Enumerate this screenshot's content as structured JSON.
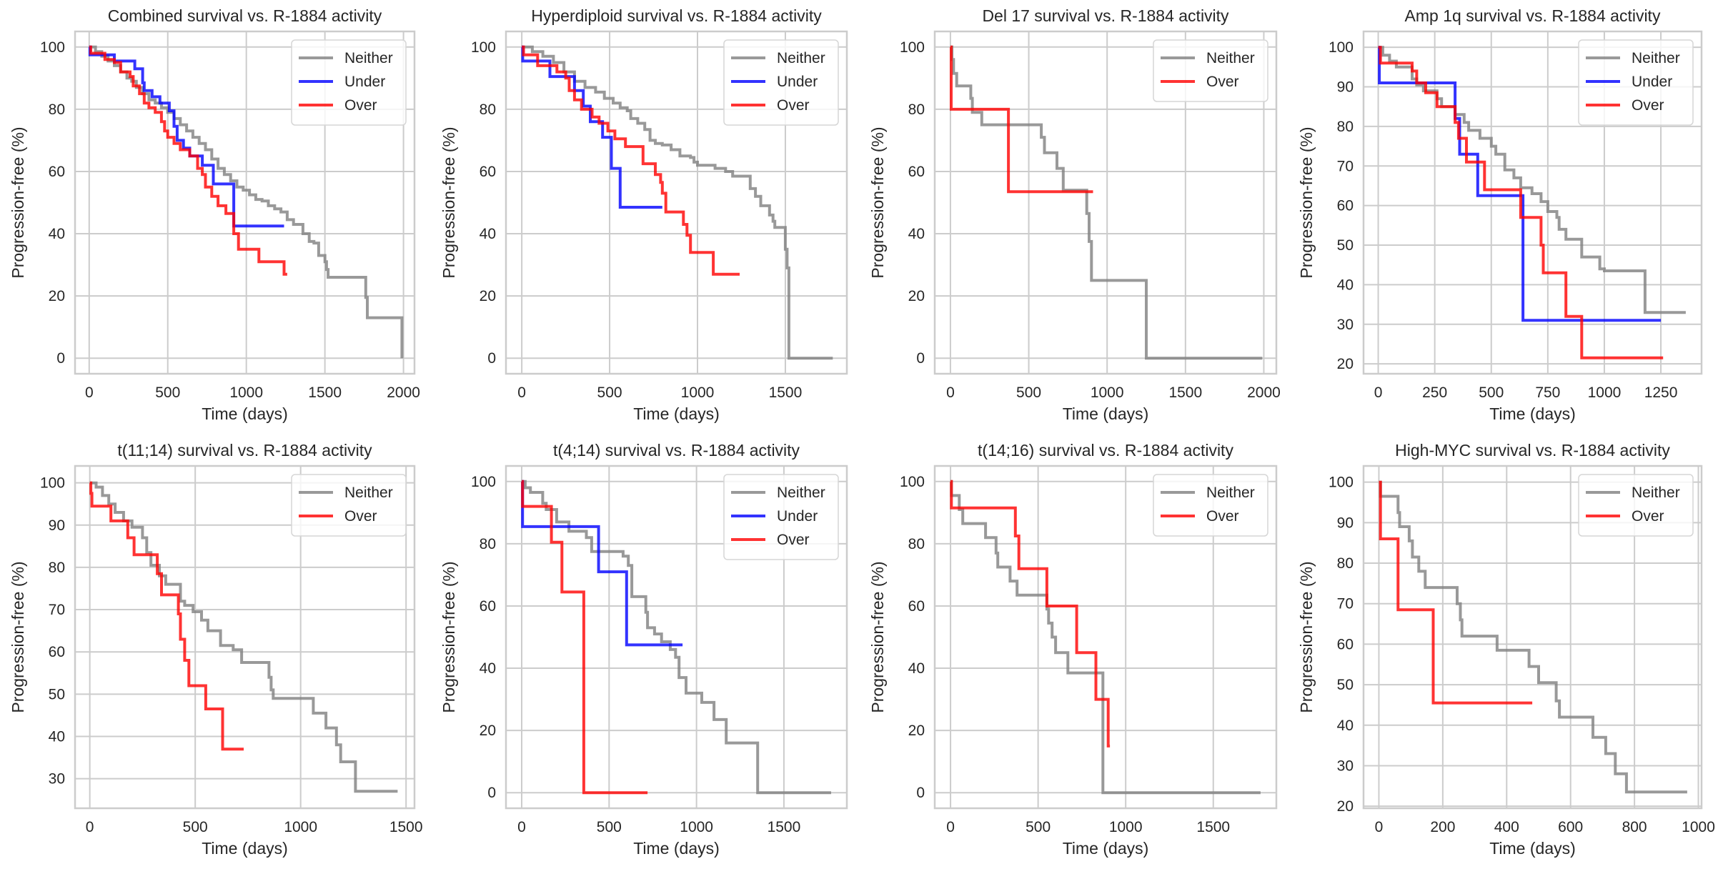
{
  "figure": {
    "series_colors": {
      "Neither": "#808080",
      "Under": "#0000ff",
      "Over": "#ff0000"
    }
  },
  "chart_data": [
    {
      "type": "line",
      "step": true,
      "title": "Combined survival vs. R-1884 activity",
      "xlabel": "Time (days)",
      "ylabel": "Progression-free (%)",
      "xlim": [
        -90,
        2070
      ],
      "ylim": [
        -5,
        105
      ],
      "xticks": [
        0,
        500,
        1000,
        1500,
        2000
      ],
      "yticks": [
        0,
        20,
        40,
        60,
        80,
        100
      ],
      "grid": true,
      "legend": "top-right",
      "series": [
        {
          "name": "Neither",
          "x": [
            0,
            40,
            80,
            120,
            160,
            200,
            240,
            270,
            300,
            340,
            380,
            420,
            460,
            500,
            540,
            580,
            620,
            660,
            700,
            740,
            780,
            820,
            860,
            900,
            940,
            980,
            1020,
            1060,
            1100,
            1140,
            1180,
            1220,
            1260,
            1300,
            1330,
            1360,
            1400,
            1430,
            1460,
            1500,
            1510,
            1520,
            1760,
            1770,
            1990
          ],
          "y": [
            100,
            98.5,
            97,
            95.5,
            94,
            92,
            90,
            89,
            87,
            85,
            83,
            82,
            80.5,
            79,
            77,
            75,
            73,
            71,
            69,
            67,
            64,
            61,
            59,
            57,
            55,
            54,
            52.5,
            51,
            50.5,
            49,
            48,
            47,
            44.5,
            43,
            43,
            40,
            37.5,
            37,
            33,
            31,
            28.5,
            26,
            19.5,
            13,
            0
          ]
        },
        {
          "name": "Under",
          "x": [
            0,
            5,
            160,
            290,
            340,
            350,
            400,
            450,
            510,
            540,
            560,
            600,
            640,
            720,
            790,
            920,
            1240
          ],
          "y": [
            100,
            97.5,
            95.5,
            93,
            88.5,
            86,
            84,
            82,
            79.5,
            74.5,
            70,
            67.5,
            65,
            62,
            56,
            42.5,
            42.5
          ]
        },
        {
          "name": "Over",
          "x": [
            0,
            10,
            100,
            160,
            200,
            260,
            280,
            320,
            350,
            380,
            420,
            460,
            480,
            500,
            540,
            580,
            640,
            690,
            720,
            740,
            780,
            820,
            870,
            920,
            950,
            1080,
            1240,
            1260
          ],
          "y": [
            100,
            98,
            96,
            95,
            92,
            90.5,
            87.5,
            85,
            82,
            80.5,
            79,
            76,
            73,
            71,
            69,
            67,
            65,
            61,
            59,
            55,
            52,
            49,
            46.5,
            40,
            35,
            31,
            27,
            27
          ]
        }
      ]
    },
    {
      "type": "line",
      "step": true,
      "title": "Hyperdiploid survival vs. R-1884 activity",
      "xlabel": "Time (days)",
      "ylabel": "Progression-free (%)",
      "xlim": [
        -90,
        1850
      ],
      "ylim": [
        -5,
        105
      ],
      "xticks": [
        0,
        500,
        1000,
        1500
      ],
      "yticks": [
        0,
        20,
        40,
        60,
        80,
        100
      ],
      "grid": true,
      "legend": "top-right",
      "series": [
        {
          "name": "Neither",
          "x": [
            0,
            60,
            120,
            180,
            240,
            300,
            360,
            420,
            470,
            520,
            560,
            600,
            620,
            660,
            700,
            730,
            760,
            800,
            850,
            900,
            960,
            980,
            1000,
            1100,
            1160,
            1200,
            1300,
            1330,
            1360,
            1410,
            1430,
            1440,
            1500,
            1510,
            1520,
            1770
          ],
          "y": [
            100,
            98.5,
            97,
            95,
            92,
            89,
            87,
            85.5,
            83.5,
            82,
            80.5,
            79.5,
            77,
            75.5,
            73.5,
            70,
            69,
            68.5,
            67,
            65,
            64.5,
            63,
            62,
            61,
            60,
            58.5,
            54.5,
            52,
            49,
            46,
            44,
            42,
            35,
            29,
            0,
            0
          ]
        },
        {
          "name": "Under",
          "x": [
            0,
            5,
            160,
            300,
            350,
            390,
            460,
            510,
            560,
            800
          ],
          "y": [
            100,
            95.5,
            90.5,
            86,
            81,
            76,
            71,
            61,
            48.5,
            48.5
          ]
        },
        {
          "name": "Over",
          "x": [
            0,
            10,
            90,
            200,
            250,
            270,
            300,
            340,
            400,
            440,
            490,
            530,
            590,
            690,
            760,
            790,
            800,
            820,
            920,
            940,
            960,
            1090,
            1240
          ],
          "y": [
            100,
            97.5,
            94,
            92,
            90,
            86,
            83,
            80,
            77.5,
            75.5,
            73,
            70.5,
            68,
            62.5,
            59,
            56.5,
            53,
            47,
            43,
            39.5,
            34,
            27,
            27
          ]
        }
      ]
    },
    {
      "type": "line",
      "step": true,
      "title": "Del 17 survival vs. R-1884 activity",
      "xlabel": "Time (days)",
      "ylabel": "Progression-free (%)",
      "xlim": [
        -100,
        2080
      ],
      "ylim": [
        -5,
        105
      ],
      "xticks": [
        0,
        500,
        1000,
        1500,
        2000
      ],
      "yticks": [
        0,
        20,
        40,
        60,
        80,
        100
      ],
      "grid": true,
      "legend": "top-right",
      "series": [
        {
          "name": "Neither",
          "x": [
            0,
            10,
            20,
            40,
            130,
            140,
            200,
            580,
            600,
            680,
            720,
            870,
            885,
            900,
            1250,
            1990
          ],
          "y": [
            100,
            96,
            91.5,
            87.5,
            83.5,
            79,
            75,
            71,
            66,
            61,
            54,
            46.5,
            37.5,
            25,
            0,
            0
          ]
        },
        {
          "name": "Over",
          "x": [
            0,
            5,
            370,
            910
          ],
          "y": [
            100,
            80,
            53.5,
            53.5
          ]
        }
      ]
    },
    {
      "type": "line",
      "step": true,
      "title": "Amp 1q survival vs. R-1884 activity",
      "xlabel": "Time (days)",
      "ylabel": "Progression-free (%)",
      "xlim": [
        -65,
        1430
      ],
      "ylim": [
        17.5,
        104
      ],
      "xticks": [
        0,
        250,
        500,
        750,
        1000,
        1250
      ],
      "yticks": [
        20,
        30,
        40,
        50,
        60,
        70,
        80,
        90,
        100
      ],
      "grid": true,
      "legend": "top-right",
      "series": [
        {
          "name": "Neither",
          "x": [
            0,
            20,
            50,
            80,
            150,
            170,
            200,
            260,
            280,
            340,
            380,
            400,
            450,
            500,
            520,
            560,
            600,
            630,
            680,
            720,
            750,
            790,
            800,
            830,
            900,
            980,
            1000,
            1180,
            1360
          ],
          "y": [
            100,
            98,
            96.5,
            95,
            92,
            90.5,
            89,
            87,
            85,
            83,
            81,
            79,
            77,
            75,
            73,
            69,
            67,
            64.5,
            63,
            61,
            58.5,
            57,
            54,
            51.5,
            47,
            44,
            43.5,
            33,
            33
          ]
        },
        {
          "name": "Under",
          "x": [
            0,
            5,
            340,
            360,
            440,
            640,
            1250
          ],
          "y": [
            100,
            91,
            82,
            73,
            62.5,
            31,
            31
          ]
        },
        {
          "name": "Over",
          "x": [
            0,
            10,
            150,
            170,
            210,
            260,
            340,
            355,
            390,
            470,
            630,
            720,
            730,
            830,
            900,
            1260
          ],
          "y": [
            100,
            96,
            94,
            91,
            88.5,
            85,
            81,
            77,
            71,
            64,
            57,
            50,
            43,
            32,
            21.5,
            21.5
          ]
        }
      ]
    },
    {
      "type": "line",
      "step": true,
      "title": "t(11;14) survival vs. R-1884 activity",
      "xlabel": "Time (days)",
      "ylabel": "Progression-free (%)",
      "xlim": [
        -70,
        1540
      ],
      "ylim": [
        23,
        104
      ],
      "xticks": [
        0,
        500,
        1000,
        1500
      ],
      "yticks": [
        30,
        40,
        50,
        60,
        70,
        80,
        90,
        100
      ],
      "grid": true,
      "legend": "top-right",
      "series": [
        {
          "name": "Neither",
          "x": [
            0,
            30,
            60,
            90,
            120,
            160,
            200,
            250,
            270,
            290,
            330,
            360,
            430,
            450,
            490,
            530,
            560,
            620,
            680,
            720,
            770,
            850,
            860,
            870,
            1060,
            1120,
            1170,
            1190,
            1260,
            1460
          ],
          "y": [
            100,
            99,
            97,
            95,
            93,
            91,
            89.5,
            87,
            83.5,
            80.5,
            78,
            76,
            72,
            71,
            69.5,
            67.5,
            65,
            61.5,
            60.5,
            57.5,
            57.5,
            54,
            51,
            49,
            45.5,
            42,
            38,
            34,
            27,
            27
          ]
        },
        {
          "name": "Over",
          "x": [
            0,
            5,
            10,
            100,
            180,
            210,
            320,
            340,
            420,
            430,
            450,
            470,
            550,
            630,
            730
          ],
          "y": [
            100,
            97.5,
            94.5,
            91,
            87,
            83,
            78.5,
            73.5,
            69,
            63,
            58,
            52,
            46.5,
            37,
            37
          ]
        }
      ]
    },
    {
      "type": "line",
      "step": true,
      "title": "t(4;14) survival vs. R-1884 activity",
      "xlabel": "Time (days)",
      "ylabel": "Progression-free (%)",
      "xlim": [
        -90,
        1860
      ],
      "ylim": [
        -5,
        105
      ],
      "xticks": [
        0,
        500,
        1000,
        1500
      ],
      "yticks": [
        0,
        20,
        40,
        60,
        80,
        100
      ],
      "grid": true,
      "legend": "top-right",
      "series": [
        {
          "name": "Neither",
          "x": [
            0,
            20,
            50,
            120,
            140,
            200,
            270,
            370,
            400,
            580,
            610,
            630,
            710,
            720,
            760,
            800,
            850,
            880,
            900,
            940,
            1030,
            1100,
            1170,
            1350,
            1770
          ],
          "y": [
            100,
            98,
            96.5,
            93,
            91,
            87,
            84,
            82,
            77.5,
            76,
            73,
            63,
            58,
            53,
            51,
            48.5,
            46,
            43.5,
            37,
            32,
            29,
            23.5,
            16,
            0,
            0
          ]
        },
        {
          "name": "Under",
          "x": [
            0,
            5,
            440,
            600,
            920
          ],
          "y": [
            100,
            85.5,
            71,
            47.5,
            47.5
          ]
        },
        {
          "name": "Over",
          "x": [
            0,
            5,
            170,
            230,
            355,
            720
          ],
          "y": [
            100,
            92,
            80.5,
            64.5,
            0,
            0
          ]
        }
      ]
    },
    {
      "type": "line",
      "step": true,
      "title": "t(14;16) survival vs. R-1884 activity",
      "xlabel": "Time (days)",
      "ylabel": "Progression-free (%)",
      "xlim": [
        -90,
        1860
      ],
      "ylim": [
        -5,
        105
      ],
      "xticks": [
        0,
        500,
        1000,
        1500
      ],
      "yticks": [
        0,
        20,
        40,
        60,
        80,
        100
      ],
      "grid": true,
      "legend": "top-right",
      "series": [
        {
          "name": "Neither",
          "x": [
            0,
            5,
            50,
            70,
            200,
            260,
            270,
            340,
            380,
            550,
            560,
            580,
            600,
            670,
            870,
            1770
          ],
          "y": [
            100,
            95.5,
            91,
            86.5,
            82,
            77,
            72.5,
            68,
            63.5,
            59,
            54.5,
            50,
            45,
            38.5,
            0,
            0
          ]
        },
        {
          "name": "Over",
          "x": [
            0,
            5,
            370,
            390,
            550,
            720,
            830,
            900,
            910
          ],
          "y": [
            100,
            91.5,
            82.5,
            72,
            60,
            45,
            30,
            15,
            15
          ]
        }
      ]
    },
    {
      "type": "line",
      "step": true,
      "title": "High-MYC survival vs. R-1884 activity",
      "xlabel": "Time (days)",
      "ylabel": "Progression-free (%)",
      "xlim": [
        -48,
        1010
      ],
      "ylim": [
        19.5,
        104
      ],
      "xticks": [
        0,
        200,
        400,
        600,
        800,
        1000
      ],
      "yticks": [
        20,
        30,
        40,
        50,
        60,
        70,
        80,
        90,
        100
      ],
      "grid": true,
      "legend": "top-right",
      "series": [
        {
          "name": "Neither",
          "x": [
            0,
            5,
            60,
            65,
            95,
            105,
            125,
            145,
            245,
            255,
            260,
            370,
            470,
            500,
            555,
            565,
            670,
            710,
            740,
            775,
            965
          ],
          "y": [
            100,
            96.5,
            92.5,
            89,
            85.5,
            81.5,
            78,
            74,
            70,
            66,
            62,
            58.5,
            54.5,
            50.5,
            46,
            42,
            37,
            33,
            28,
            23.5,
            23.5
          ]
        },
        {
          "name": "Over",
          "x": [
            0,
            5,
            60,
            170,
            480
          ],
          "y": [
            100,
            86,
            68.5,
            45.5,
            45.5
          ]
        }
      ]
    }
  ]
}
